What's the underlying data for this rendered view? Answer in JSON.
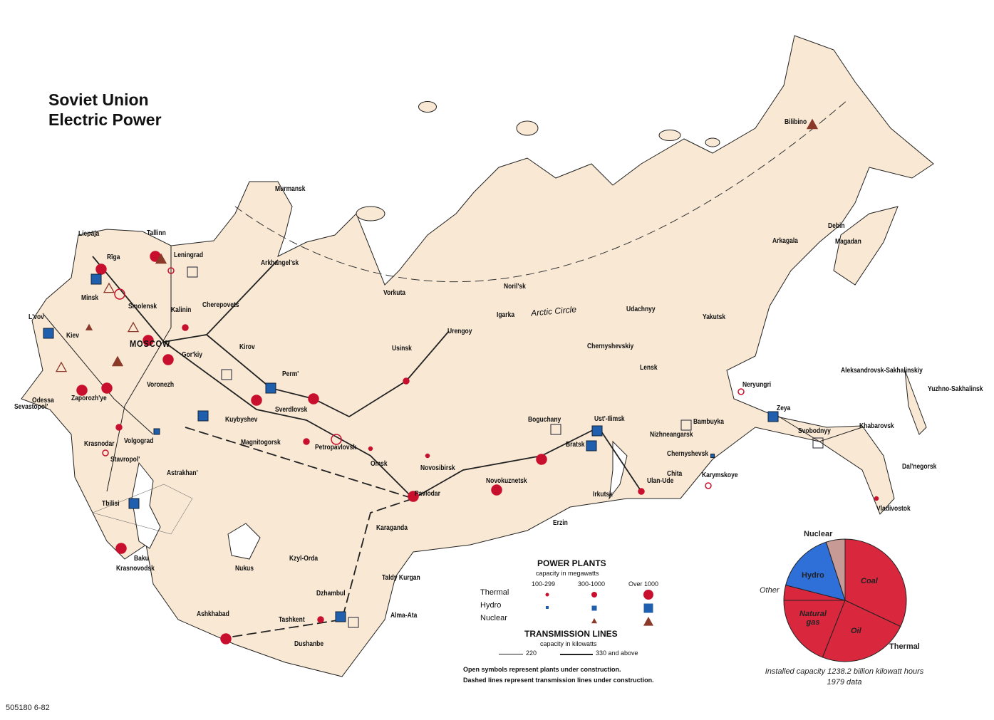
{
  "title": {
    "line1": "Soviet Union",
    "line2": "Electric Power"
  },
  "arctic_circle_label": "Arctic Circle",
  "cities": [
    "Murmansk",
    "Liepāja",
    "Tallinn",
    "Rīga",
    "Leningrad",
    "Arkhangel'sk",
    "Minsk",
    "Smolensk",
    "Kalinin",
    "Cherepovets",
    "Vorkuta",
    "L'vov",
    "Kiev",
    "MOSCOW",
    "Gor'kiy",
    "Kirov",
    "Perm'",
    "Odessa",
    "Zaporozh'ye",
    "Voronezh",
    "Sevastopol'",
    "Kuybyshev",
    "Sverdlovsk",
    "Volgograd",
    "Magnitogorsk",
    "Petropavlovsk",
    "Krasnodar",
    "Stavropol'",
    "Astrakhan'",
    "Omsk",
    "Novosibirsk",
    "Novokuznetsk",
    "Pavlodar",
    "Tbilisi",
    "Karaganda",
    "Baku",
    "Krasnovodsk",
    "Nukus",
    "Kzyl-Orda",
    "Taldy Kurgan",
    "Dzhambul",
    "Alma-Ata",
    "Ashkhabad",
    "Tashkent",
    "Dushanbe",
    "Usinsk",
    "Urengoy",
    "Noril'sk",
    "Igarka",
    "Boguchany",
    "Ust'-Ilimsk",
    "Bratsk",
    "Irkutsk",
    "Ulan-Ude",
    "Chita",
    "Erzin",
    "Nizhneangarsk",
    "Chernyshevsk",
    "Karymskoye",
    "Bambuyka",
    "Udachnyy",
    "Chernyshevskiy",
    "Lensk",
    "Yakutsk",
    "Neryungri",
    "Zeya",
    "Svobodnyy",
    "Khabarovsk",
    "Dal'negorsk",
    "Vladivostok",
    "Aleksandrovsk-Sakhalinskiy",
    "Yuzhno-Sakhalinsk",
    "Arkagala",
    "Debin",
    "Magadan",
    "Bilibino"
  ],
  "legend": {
    "power_plants_title": "POWER PLANTS",
    "capacity_label": "capacity in megawatts",
    "size_classes": [
      "100-299",
      "300-1000",
      "Over 1000"
    ],
    "rows": [
      "Thermal",
      "Hydro",
      "Nuclear"
    ],
    "transmission_title": "TRANSMISSION LINES",
    "transmission_capacity_label": "capacity in kilowatts",
    "line_classes": [
      "220",
      "330 and above"
    ],
    "note_open": "Open symbols represent plants under construction.",
    "note_dashed": "Dashed lines represent transmission lines under construction."
  },
  "colors": {
    "land": "#f8e8d4",
    "thermal": "#c8102e",
    "hydro": "#1f5fae",
    "nuclear": "#8b3a2a",
    "pie_thermal": "#d9283e",
    "pie_hydro": "#2f6fd8",
    "pie_nuclear": "#c79a96"
  },
  "chart_data": {
    "type": "pie",
    "slices": [
      {
        "label": "Coal",
        "value": 32,
        "group": "Thermal"
      },
      {
        "label": "Oil",
        "value": 24,
        "group": "Thermal"
      },
      {
        "label": "Natural gas",
        "value": 19,
        "group": "Thermal"
      },
      {
        "label": "Other",
        "value": 4,
        "group": "Thermal"
      },
      {
        "label": "Hydro",
        "value": 16
      },
      {
        "label": "Nuclear",
        "value": 5
      }
    ],
    "group_label": "Thermal",
    "caption_line1": "Installed capacity 1238.2 billion kilowatt hours",
    "caption_line2": "1979 data"
  },
  "map_code": "505180 6-82"
}
